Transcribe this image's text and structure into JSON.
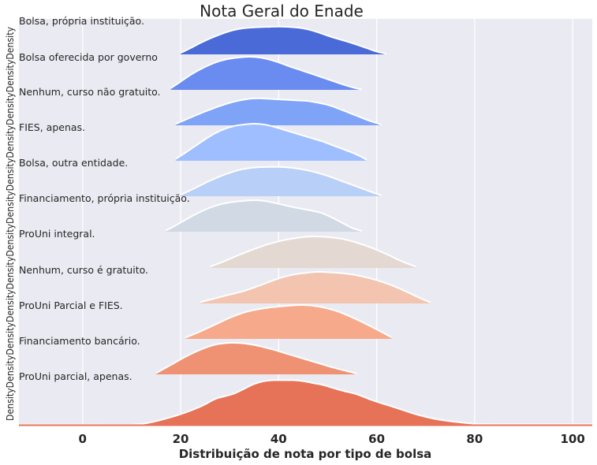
{
  "chart_data": {
    "type": "area",
    "subtype": "ridgeline",
    "title": "Nota Geral do Enade",
    "xlabel": "Distribuição de nota por tipo de bolsa",
    "ylabel": "DensityDensityDensityDensityDensityDensityDensityDensityDensityDensityDensityDensity",
    "xlim": [
      -13,
      104
    ],
    "xticks": [
      0,
      20,
      40,
      60,
      80,
      100
    ],
    "grid": true,
    "colors": {
      "background": "#eaeaf2",
      "grid": "#ffffff",
      "text": "#262626"
    },
    "series": [
      {
        "name": "Bolsa, própria instituição.",
        "color": "#4a6ad8",
        "x": [
          20,
          22,
          24,
          26,
          28,
          30,
          32,
          34,
          36,
          38,
          40,
          42,
          44,
          46,
          48,
          50,
          52,
          54,
          56,
          58,
          60,
          62
        ],
        "density": [
          0.05,
          0.22,
          0.4,
          0.56,
          0.7,
          0.82,
          0.9,
          0.94,
          0.96,
          0.97,
          0.98,
          0.97,
          0.94,
          0.88,
          0.78,
          0.66,
          0.55,
          0.45,
          0.34,
          0.22,
          0.1,
          0.02
        ]
      },
      {
        "name": "Bolsa oferecida por governo",
        "color": "#6a8bef",
        "x": [
          18,
          20,
          22,
          24,
          26,
          28,
          30,
          32,
          34,
          36,
          38,
          40,
          42,
          44,
          46,
          48,
          50,
          52,
          54,
          56,
          57
        ],
        "density": [
          0.05,
          0.25,
          0.45,
          0.62,
          0.76,
          0.87,
          0.94,
          0.98,
          1.0,
          0.98,
          0.92,
          0.83,
          0.72,
          0.62,
          0.52,
          0.42,
          0.32,
          0.22,
          0.12,
          0.04,
          0.01
        ]
      },
      {
        "name": "Nenhum, curso não gratuito.",
        "color": "#7fa3f6",
        "x": [
          19,
          22,
          25,
          28,
          31,
          34,
          36,
          38,
          40,
          42,
          44,
          46,
          48,
          50,
          52,
          54,
          56,
          58,
          60,
          61
        ],
        "density": [
          0.05,
          0.28,
          0.5,
          0.7,
          0.86,
          0.96,
          0.98,
          0.96,
          0.94,
          0.92,
          0.9,
          0.88,
          0.82,
          0.74,
          0.62,
          0.48,
          0.34,
          0.2,
          0.08,
          0.02
        ]
      },
      {
        "name": "FIES, apenas.",
        "color": "#9ebeff",
        "x": [
          19,
          21,
          23,
          25,
          27,
          29,
          31,
          33,
          35,
          37,
          39,
          41,
          43,
          45,
          47,
          49,
          51,
          53,
          55,
          57,
          58
        ],
        "density": [
          0.05,
          0.22,
          0.4,
          0.58,
          0.74,
          0.86,
          0.94,
          0.98,
          1.0,
          0.98,
          0.92,
          0.84,
          0.76,
          0.68,
          0.6,
          0.52,
          0.42,
          0.32,
          0.22,
          0.1,
          0.02
        ]
      },
      {
        "name": "Bolsa, outra entidade.",
        "color": "#b8cff7",
        "x": [
          20,
          22,
          24,
          26,
          28,
          30,
          32,
          34,
          36,
          38,
          40,
          42,
          44,
          46,
          48,
          50,
          52,
          54,
          56,
          58,
          60,
          61
        ],
        "density": [
          0.05,
          0.2,
          0.36,
          0.52,
          0.66,
          0.78,
          0.88,
          0.94,
          0.97,
          0.98,
          0.98,
          0.96,
          0.92,
          0.86,
          0.78,
          0.68,
          0.56,
          0.44,
          0.32,
          0.2,
          0.08,
          0.02
        ]
      },
      {
        "name": "Financiamento, própria instituição.",
        "color": "#d1d9e5",
        "x": [
          17,
          19,
          21,
          23,
          25,
          27,
          29,
          31,
          33,
          35,
          37,
          39,
          41,
          43,
          45,
          47,
          49,
          51,
          53,
          55,
          57
        ],
        "density": [
          0.04,
          0.2,
          0.38,
          0.55,
          0.7,
          0.82,
          0.9,
          0.95,
          0.98,
          1.0,
          0.98,
          0.92,
          0.85,
          0.78,
          0.72,
          0.66,
          0.58,
          0.44,
          0.28,
          0.12,
          0.02
        ]
      },
      {
        "name": "ProUni integral.",
        "color": "#e3d8d2",
        "x": [
          26,
          29,
          32,
          35,
          38,
          41,
          44,
          47,
          50,
          53,
          56,
          59,
          62,
          65,
          68
        ],
        "density": [
          0.04,
          0.22,
          0.42,
          0.6,
          0.76,
          0.88,
          0.96,
          1.0,
          0.98,
          0.92,
          0.8,
          0.64,
          0.44,
          0.22,
          0.04
        ]
      },
      {
        "name": "Nenhum, curso é gratuito.",
        "color": "#f3c5b0",
        "x": [
          24,
          27,
          30,
          33,
          36,
          39,
          42,
          45,
          48,
          51,
          54,
          57,
          60,
          63,
          66,
          69,
          71
        ],
        "density": [
          0.04,
          0.16,
          0.28,
          0.4,
          0.56,
          0.74,
          0.88,
          0.96,
          1.0,
          0.98,
          0.94,
          0.86,
          0.74,
          0.58,
          0.38,
          0.16,
          0.03
        ]
      },
      {
        "name": "ProUni Parcial e FIES.",
        "color": "#f6aa8b",
        "x": [
          21,
          24,
          27,
          30,
          33,
          36,
          39,
          42,
          45,
          48,
          51,
          54,
          57,
          60,
          63
        ],
        "density": [
          0.04,
          0.22,
          0.42,
          0.62,
          0.78,
          0.88,
          0.94,
          0.98,
          1.0,
          0.96,
          0.86,
          0.7,
          0.5,
          0.28,
          0.05
        ]
      },
      {
        "name": "Financiamento bancário.",
        "color": "#ef9273",
        "x": [
          15,
          18,
          21,
          24,
          27,
          30,
          33,
          36,
          39,
          42,
          45,
          48,
          51,
          54,
          56
        ],
        "density": [
          0.04,
          0.3,
          0.56,
          0.78,
          0.94,
          1.0,
          0.98,
          0.9,
          0.78,
          0.64,
          0.5,
          0.36,
          0.22,
          0.1,
          0.02
        ]
      },
      {
        "name": "ProUni parcial, apenas.",
        "color": "#e67258",
        "x": [
          -13,
          -5,
          0,
          5,
          10,
          13,
          16,
          20,
          24,
          27,
          29,
          31,
          33,
          35,
          37,
          39,
          41,
          43,
          45,
          47,
          49,
          51,
          53,
          56,
          59,
          62,
          65,
          68,
          72,
          76,
          80,
          85,
          90,
          95,
          100,
          104
        ],
        "density": [
          0.02,
          0.02,
          0.02,
          0.02,
          0.02,
          0.05,
          0.12,
          0.24,
          0.4,
          0.56,
          0.62,
          0.68,
          0.78,
          0.88,
          0.94,
          0.96,
          0.96,
          0.96,
          0.94,
          0.9,
          0.86,
          0.8,
          0.74,
          0.66,
          0.54,
          0.44,
          0.34,
          0.24,
          0.14,
          0.08,
          0.04,
          0.03,
          0.03,
          0.03,
          0.03,
          0.03
        ]
      }
    ]
  }
}
